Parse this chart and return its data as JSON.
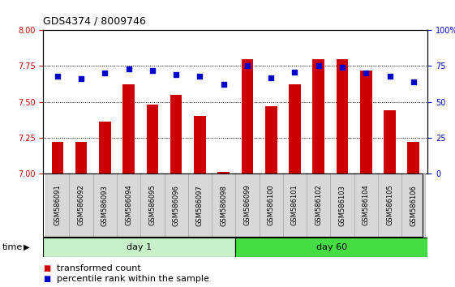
{
  "title": "GDS4374 / 8009746",
  "samples": [
    "GSM586091",
    "GSM586092",
    "GSM586093",
    "GSM586094",
    "GSM586095",
    "GSM586096",
    "GSM586097",
    "GSM586098",
    "GSM586099",
    "GSM586100",
    "GSM586101",
    "GSM586102",
    "GSM586103",
    "GSM586104",
    "GSM586105",
    "GSM586106"
  ],
  "bar_values": [
    7.22,
    7.22,
    7.36,
    7.62,
    7.48,
    7.55,
    7.4,
    7.01,
    7.8,
    7.47,
    7.62,
    7.8,
    7.8,
    7.72,
    7.44,
    7.22
  ],
  "dot_values": [
    68,
    66,
    70,
    73,
    72,
    69,
    68,
    62,
    75,
    67,
    71,
    75,
    74,
    70,
    68,
    64
  ],
  "ylim_left": [
    7.0,
    8.0
  ],
  "ylim_right": [
    0,
    100
  ],
  "yticks_left": [
    7.0,
    7.25,
    7.5,
    7.75,
    8.0
  ],
  "yticks_right": [
    0,
    25,
    50,
    75,
    100
  ],
  "bar_color": "#cc0000",
  "dot_color": "#0000cc",
  "bar_width": 0.5,
  "day1_count": 8,
  "day60_count": 8,
  "day1_label": "day 1",
  "day60_label": "day 60",
  "day1_color": "#c8f0c8",
  "day60_color": "#44dd44",
  "time_label": "time",
  "legend1": "transformed count",
  "legend2": "percentile rank within the sample",
  "sample_box_color": "#d8d8d8",
  "sample_box_edge": "#aaaaaa",
  "title_fontsize": 9,
  "tick_fontsize": 7,
  "sample_fontsize": 6,
  "legend_fontsize": 8,
  "day_fontsize": 8
}
